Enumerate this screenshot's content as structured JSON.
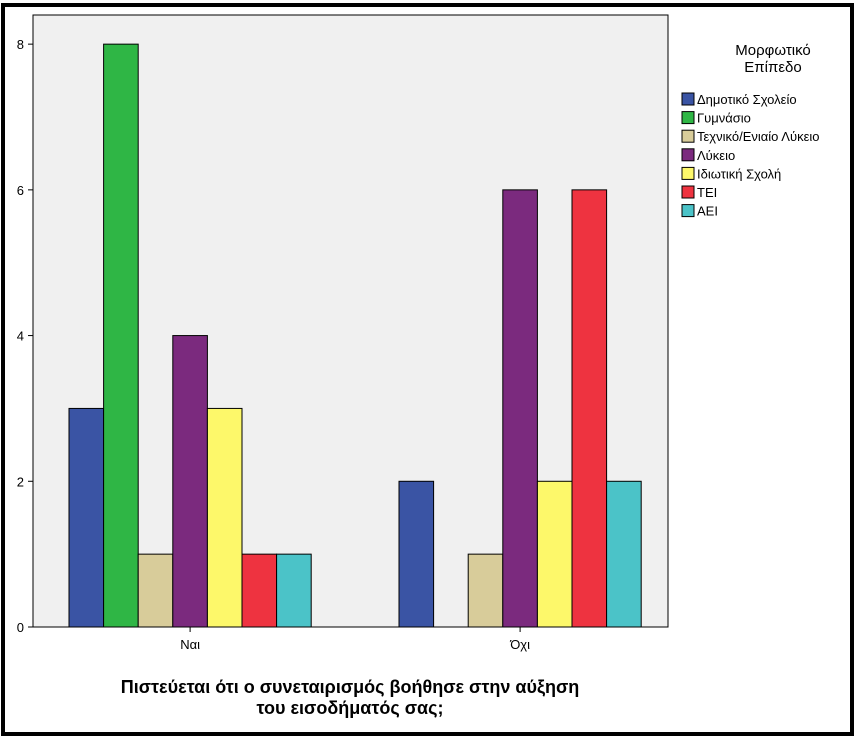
{
  "chart_data": {
    "type": "bar",
    "title": "",
    "xlabel": "Πιστεύεται ότι ο συνεταιρισμός βοήθησε στην αύξηση του εισοδήματός σας;",
    "xlabel_lines": [
      "Πιστεύεται ότι ο συνεταιρισμός βοήθησε στην αύξηση",
      "του εισοδήματός σας;"
    ],
    "ylabel": "",
    "ylim": [
      0,
      8.4
    ],
    "yticks": [
      0,
      2,
      4,
      6,
      8
    ],
    "grid": false,
    "legend_position": "right",
    "legend_title": [
      "Μορφωτικό",
      "Επίπεδο"
    ],
    "categories": [
      "Ναι",
      "Όχι"
    ],
    "series": [
      {
        "name": "Δημοτικό Σχολείο",
        "color": "#3a54a4",
        "values": [
          3,
          2
        ]
      },
      {
        "name": "Γυμνάσιο",
        "color": "#2fb645",
        "values": [
          8,
          0
        ]
      },
      {
        "name": "Τεχνικό/Ενιαίο Λύκειο",
        "color": "#d8cc9a",
        "values": [
          1,
          1
        ]
      },
      {
        "name": "Λύκειο",
        "color": "#7b2a7e",
        "values": [
          4,
          6
        ]
      },
      {
        "name": "Ιδιωτική Σχολή",
        "color": "#fdf86a",
        "values": [
          3,
          2
        ]
      },
      {
        "name": "ΤΕΙ",
        "color": "#ee3340",
        "values": [
          1,
          6
        ]
      },
      {
        "name": "ΑΕΙ",
        "color": "#4bc3c8",
        "values": [
          1,
          2
        ]
      }
    ],
    "plot_background": "#f0f0f0"
  }
}
